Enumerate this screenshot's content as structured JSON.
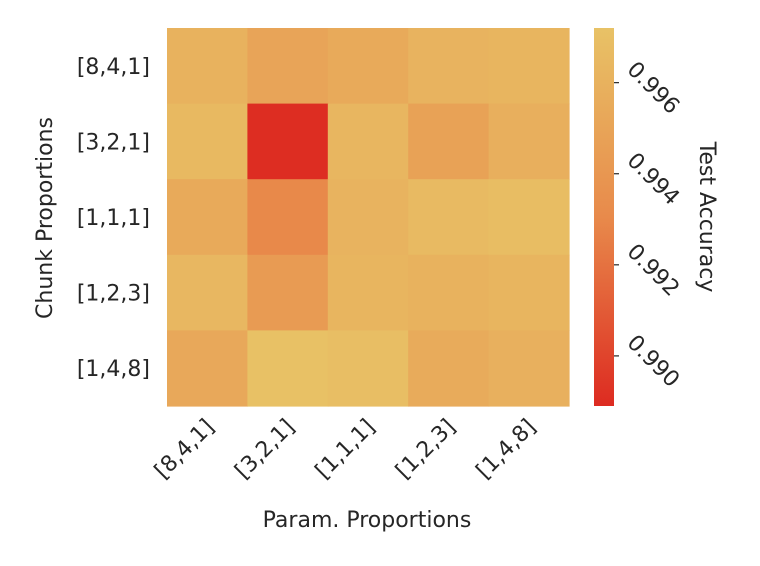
{
  "chart_data": {
    "type": "heatmap",
    "xlabel": "Param. Proportions",
    "ylabel": "Chunk Proportions",
    "x_categories": [
      "[8,4,1]",
      "[3,2,1]",
      "[1,1,1]",
      "[1,2,3]",
      "[1,4,8]"
    ],
    "y_categories": [
      "[8,4,1]",
      "[3,2,1]",
      "[1,1,1]",
      "[1,2,3]",
      "[1,4,8]"
    ],
    "values": [
      [
        0.996,
        0.995,
        0.9954,
        0.9961,
        0.9962
      ],
      [
        0.9965,
        0.989,
        0.9963,
        0.9948,
        0.9958
      ],
      [
        0.9954,
        0.993,
        0.9961,
        0.9966,
        0.9968
      ],
      [
        0.9964,
        0.9943,
        0.9962,
        0.996,
        0.9962
      ],
      [
        0.9953,
        0.9971,
        0.9969,
        0.9955,
        0.9959
      ]
    ],
    "colorbar": {
      "label": "Test Accuracy",
      "vmin": 0.9889,
      "vmax": 0.9972,
      "ticks": [
        0.99,
        0.992,
        0.994,
        0.996
      ],
      "tick_labels": [
        "0.990",
        "0.992",
        "0.994",
        "0.996"
      ]
    },
    "colors": {
      "low": "#dd2b21",
      "mid": "#e88a4b",
      "high": "#e8c266"
    }
  }
}
